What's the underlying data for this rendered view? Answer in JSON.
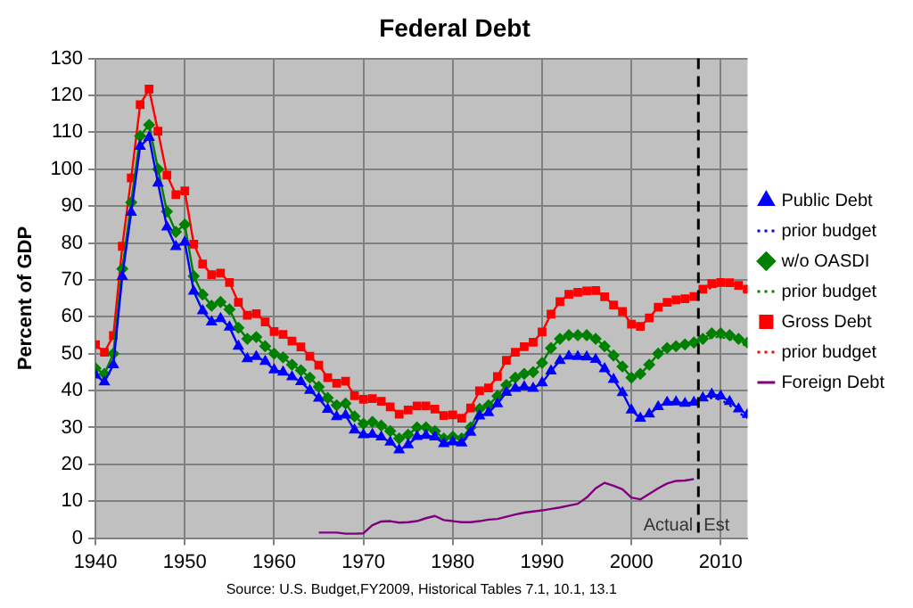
{
  "chart_data": {
    "type": "line",
    "title": "Federal Debt",
    "ylabel": "Percent of GDP",
    "xlim": [
      1940,
      2013
    ],
    "xticks": [
      1940,
      1950,
      1960,
      1970,
      1980,
      1990,
      2000,
      2010
    ],
    "ylim": [
      0,
      130
    ],
    "yticks": [
      0,
      10,
      20,
      30,
      40,
      50,
      60,
      70,
      80,
      90,
      100,
      110,
      120,
      130
    ],
    "grid": true,
    "legend": "right",
    "series": [
      {
        "name": "Public Debt",
        "color": "#0000ff",
        "marker": "triangle",
        "line_style": "solid",
        "x": [
          1940,
          1941,
          1942,
          1943,
          1944,
          1945,
          1946,
          1947,
          1948,
          1949,
          1950,
          1951,
          1952,
          1953,
          1954,
          1955,
          1956,
          1957,
          1958,
          1959,
          1960,
          1961,
          1962,
          1963,
          1964,
          1965,
          1966,
          1967,
          1968,
          1969,
          1970,
          1971,
          1972,
          1973,
          1974,
          1975,
          1976,
          1977,
          1978,
          1979,
          1980,
          1981,
          1982,
          1983,
          1984,
          1985,
          1986,
          1987,
          1988,
          1989,
          1990,
          1991,
          1992,
          1993,
          1994,
          1995,
          1996,
          1997,
          1998,
          1999,
          2000,
          2001,
          2002,
          2003,
          2004,
          2005,
          2006,
          2007,
          2008,
          2009,
          2010,
          2011,
          2012,
          2013
        ],
        "values": [
          44.2,
          42.3,
          47.0,
          70.9,
          88.3,
          106.2,
          108.6,
          96.2,
          84.3,
          79.0,
          80.2,
          66.9,
          61.6,
          58.6,
          59.5,
          57.2,
          52.0,
          48.6,
          49.2,
          47.9,
          45.6,
          45.0,
          43.7,
          42.4,
          40.0,
          37.9,
          34.9,
          32.9,
          33.3,
          29.3,
          28.0,
          28.1,
          27.4,
          26.0,
          23.9,
          25.3,
          27.5,
          27.8,
          27.4,
          25.6,
          26.1,
          25.8,
          28.7,
          33.1,
          34.0,
          36.4,
          39.5,
          40.6,
          41.0,
          40.6,
          42.1,
          45.3,
          48.1,
          49.3,
          49.2,
          49.1,
          48.4,
          45.9,
          43.0,
          39.4,
          34.7,
          32.5,
          33.6,
          35.6,
          36.8,
          36.9,
          36.5,
          36.8,
          38,
          39,
          38.5,
          37,
          35,
          33.5
        ]
      },
      {
        "name": "prior budget",
        "color": "#0000ff",
        "marker": "none",
        "line_style": "dotted",
        "x": [
          2008,
          2009,
          2010,
          2011,
          2012,
          2013
        ],
        "values": [
          37.5,
          38,
          37.5,
          36,
          34,
          32.5
        ]
      },
      {
        "name": "w/o OASDI",
        "color": "#008000",
        "marker": "diamond",
        "line_style": "solid",
        "x": [
          1940,
          1941,
          1942,
          1943,
          1944,
          1945,
          1946,
          1947,
          1948,
          1949,
          1950,
          1951,
          1952,
          1953,
          1954,
          1955,
          1956,
          1957,
          1958,
          1959,
          1960,
          1961,
          1962,
          1963,
          1964,
          1965,
          1966,
          1967,
          1968,
          1969,
          1970,
          1971,
          1972,
          1973,
          1974,
          1975,
          1976,
          1977,
          1978,
          1979,
          1980,
          1981,
          1982,
          1983,
          1984,
          1985,
          1986,
          1987,
          1988,
          1989,
          1990,
          1991,
          1992,
          1993,
          1994,
          1995,
          1996,
          1997,
          1998,
          1999,
          2000,
          2001,
          2002,
          2003,
          2004,
          2005,
          2006,
          2007,
          2008,
          2009,
          2010,
          2011,
          2012,
          2013
        ],
        "values": [
          46,
          44.5,
          50,
          73,
          91,
          109,
          112,
          100,
          88.5,
          83,
          85,
          71,
          66,
          63,
          64,
          62,
          57,
          54,
          54.5,
          52,
          50,
          49,
          47,
          45.5,
          43.5,
          41,
          38,
          36,
          36.5,
          33,
          31,
          31.5,
          30.5,
          29,
          27,
          28,
          30,
          30,
          29,
          27,
          27.5,
          27,
          30,
          35,
          36,
          38.5,
          41.5,
          43.5,
          44.5,
          45,
          47.5,
          51.5,
          54,
          55,
          55,
          55,
          54,
          52,
          49.5,
          46.5,
          43.5,
          44.5,
          47,
          50,
          51.5,
          52,
          52.5,
          53,
          54,
          55.5,
          55.5,
          55,
          54,
          53
        ]
      },
      {
        "name": "prior budget",
        "color": "#008000",
        "marker": "none",
        "line_style": "dotted",
        "x": [
          2008,
          2009,
          2010,
          2011,
          2012,
          2013
        ],
        "values": [
          53,
          54.5,
          54.5,
          54,
          53,
          52
        ]
      },
      {
        "name": "Gross Debt",
        "color": "#ff0000",
        "marker": "square",
        "line_style": "solid",
        "x": [
          1940,
          1941,
          1942,
          1943,
          1944,
          1945,
          1946,
          1947,
          1948,
          1949,
          1950,
          1951,
          1952,
          1953,
          1954,
          1955,
          1956,
          1957,
          1958,
          1959,
          1960,
          1961,
          1962,
          1963,
          1964,
          1965,
          1966,
          1967,
          1968,
          1969,
          1970,
          1971,
          1972,
          1973,
          1974,
          1975,
          1976,
          1977,
          1978,
          1979,
          1980,
          1981,
          1982,
          1983,
          1984,
          1985,
          1986,
          1987,
          1988,
          1989,
          1990,
          1991,
          1992,
          1993,
          1994,
          1995,
          1996,
          1997,
          1998,
          1999,
          2000,
          2001,
          2002,
          2003,
          2004,
          2005,
          2006,
          2007,
          2008,
          2009,
          2010,
          2011,
          2012,
          2013
        ],
        "values": [
          52.4,
          50.4,
          54.9,
          79.1,
          97.6,
          117.5,
          121.7,
          110.3,
          98.4,
          93.1,
          94.1,
          79.7,
          74.3,
          71.4,
          71.8,
          69.3,
          63.9,
          60.4,
          60.8,
          58.6,
          56.0,
          55.2,
          53.4,
          51.8,
          49.3,
          46.9,
          43.5,
          42.0,
          42.5,
          38.6,
          37.6,
          37.8,
          37.1,
          35.6,
          33.6,
          34.7,
          35.8,
          35.8,
          35.0,
          33.2,
          33.4,
          32.5,
          35.3,
          39.9,
          40.7,
          43.8,
          48.2,
          50.4,
          51.9,
          53.1,
          55.9,
          60.7,
          64.1,
          66.1,
          66.6,
          67.0,
          67.1,
          65.4,
          63.2,
          61.4,
          58.0,
          57.4,
          59.7,
          62.6,
          63.9,
          64.6,
          64.9,
          65.5,
          67.5,
          69.0,
          69.3,
          69.2,
          68.5,
          67.5
        ]
      },
      {
        "name": "prior budget",
        "color": "#ff0000",
        "marker": "none",
        "line_style": "dotted",
        "x": [
          2008,
          2009,
          2010,
          2011,
          2012,
          2013
        ],
        "values": [
          66.5,
          68,
          68.5,
          68.5,
          67.5,
          66.5
        ]
      },
      {
        "name": "Foreign Debt",
        "color": "#800080",
        "marker": "none",
        "line_style": "solid",
        "x": [
          1965,
          1966,
          1967,
          1968,
          1969,
          1970,
          1971,
          1972,
          1973,
          1974,
          1975,
          1976,
          1977,
          1978,
          1979,
          1980,
          1981,
          1982,
          1983,
          1984,
          1985,
          1986,
          1987,
          1988,
          1989,
          1990,
          1991,
          1992,
          1993,
          1994,
          1995,
          1996,
          1997,
          1998,
          1999,
          2000,
          2001,
          2002,
          2003,
          2004,
          2005,
          2006,
          2007
        ],
        "values": [
          1.5,
          1.5,
          1.5,
          1.2,
          1.2,
          1.3,
          3.5,
          4.5,
          4.6,
          4.2,
          4.3,
          4.6,
          5.4,
          6.0,
          4.9,
          4.6,
          4.3,
          4.3,
          4.6,
          5.0,
          5.2,
          5.8,
          6.4,
          6.9,
          7.2,
          7.5,
          7.9,
          8.3,
          8.8,
          9.3,
          11.0,
          13.5,
          15.0,
          14.2,
          13.2,
          11.0,
          10.5,
          12.0,
          13.5,
          14.8,
          15.5,
          15.6,
          16.0
        ]
      }
    ],
    "ref_lines": [
      {
        "axis": "x",
        "value": 2007.5,
        "color": "#000000",
        "line_style": "dashed"
      }
    ],
    "annotations": [
      "Actual",
      "Est",
      "Source: U.S. Budget,FY2009, Historical Tables 7.1, 10.1, 13.1"
    ]
  }
}
